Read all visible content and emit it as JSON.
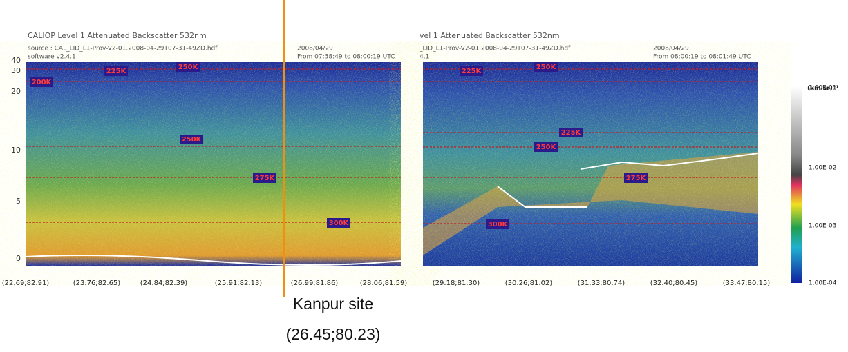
{
  "panels": [
    {
      "title": "CALIOP Level 1 Attenuated Backscatter 532nm",
      "source": "source : CAL_LID_L1-Prov-V2-01.2008-04-29T07-31-49ZD.hdf",
      "software": "software v2.4.1",
      "date": "2008/04/29",
      "time": "From 07:58:49 to 08:00:19 UTC",
      "yticks": [
        "40",
        "30",
        "20",
        "10",
        "5",
        "0"
      ],
      "xticks": [
        "(22.69;82.91)",
        "(23.76;82.65)",
        "(24.84;82.39)",
        "(25.91;82.13)",
        "(26.99;81.86)",
        "(28.06;81.59)"
      ],
      "temperatures": [
        "225K",
        "250K",
        "200K",
        "250K",
        "275K",
        "300K"
      ]
    },
    {
      "title": "vel 1 Attenuated Backscatter 532nm",
      "source": "_LID_L1-Prov-V2-01.2008-04-29T07-31-49ZD.hdf",
      "software": "4.1",
      "date": "2008/04/29",
      "time": "From 08:00:19 to 08:01:49 UTC",
      "xticks": [
        "(29.18;81.30)",
        "(30.26;81.02)",
        "(31.33;80.74)",
        "(32.40;80.45)",
        "(33.47;80.15)"
      ],
      "temperatures": [
        "225K",
        "250K",
        "225K",
        "250K",
        "275K",
        "300K"
      ]
    }
  ],
  "colorbar": {
    "unit": "(km.sr)⁻¹",
    "labels": [
      "1.00E-01",
      "1.00E-02",
      "1.00E-03",
      "1.00E-04"
    ]
  },
  "annotation": {
    "site": "Kanpur site",
    "coords": "(26.45;80.23)"
  }
}
